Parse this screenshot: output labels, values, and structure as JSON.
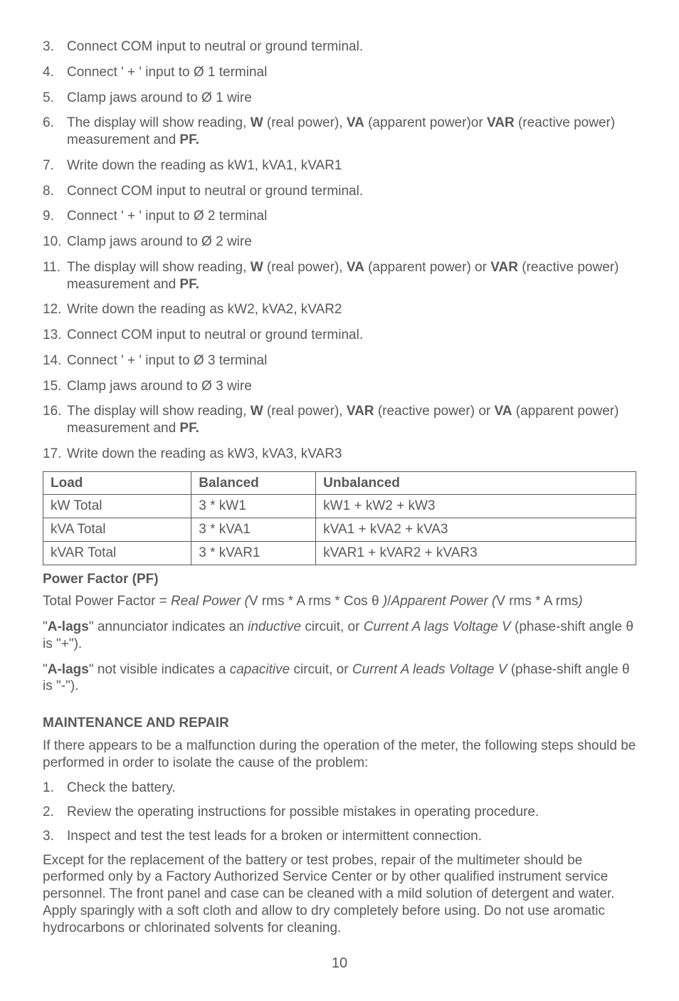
{
  "steps": [
    {
      "n": "3.",
      "t": "Connect COM input to neutral or ground terminal."
    },
    {
      "n": "4.",
      "t": "Connect ' + ' input to Ø 1 terminal"
    },
    {
      "n": "5.",
      "t": "Clamp jaws around to Ø 1 wire"
    },
    {
      "n": "6.",
      "pre": "The display will show reading, ",
      "b1": "W",
      "mid1": " (real power), ",
      "b2": "VA",
      "mid2": " (apparent power)or ",
      "b3": "VAR",
      "mid3": " (reactive power) measurement and ",
      "b4": "PF."
    },
    {
      "n": "7.",
      "t": "Write down the reading as kW1, kVA1, kVAR1"
    },
    {
      "n": "8.",
      "t": "Connect COM input to neutral or ground terminal."
    },
    {
      "n": "9.",
      "t": "Connect ' + ' input to Ø 2 terminal"
    },
    {
      "n": "10.",
      "t": "Clamp jaws around to Ø 2 wire"
    },
    {
      "n": "11.",
      "pre": "The display will show reading, ",
      "b1": "W",
      "mid1": " (real power), ",
      "b2": "VA",
      "mid2": " (apparent power) or ",
      "b3": "VAR",
      "mid3": " (reactive power) measurement and ",
      "b4": "PF."
    },
    {
      "n": "12.",
      "t": "Write down the reading as kW2, kVA2, kVAR2"
    },
    {
      "n": "13.",
      "t": "Connect COM input to neutral or ground terminal."
    },
    {
      "n": "14.",
      "t": "Connect ' + ' input to Ø 3 terminal"
    },
    {
      "n": "15.",
      "t": "Clamp jaws around to Ø 3 wire"
    },
    {
      "n": "16.",
      "pre": "The display will show reading, ",
      "b1": "W",
      "mid1": " (real power), ",
      "b2": "VAR",
      "mid2": " (reactive power) or ",
      "b3": "VA",
      "mid3": " (apparent power) measurement and ",
      "b4": "PF."
    },
    {
      "n": "17.",
      "t": "Write down the reading as kW3, kVA3, kVAR3"
    }
  ],
  "table": {
    "headers": [
      "Load",
      "Balanced",
      "Unbalanced"
    ],
    "rows": [
      [
        "kW Total",
        "3 * kW1",
        "kW1 + kW2 + kW3"
      ],
      [
        "kVA Total",
        "3 * kVA1",
        "kVA1 + kVA2 + kVA3"
      ],
      [
        "kVAR Total",
        "3 * kVAR1",
        "kVAR1 + kVAR2 + kVAR3"
      ]
    ],
    "col_widths": [
      "25%",
      "21%",
      "54%"
    ]
  },
  "pf": {
    "head": "Power Factor  (PF)",
    "formula_pre": "Total Power Factor = ",
    "formula_i1": "Real Power (",
    "formula_mid1": "V rms * A rms * Cos θ ",
    "formula_i2": ")",
    "formula_slash": "/",
    "formula_i3": "Apparent Power (",
    "formula_mid2": "V rms * A rms",
    "formula_i4": ")",
    "lags1_q1": "\"",
    "lags1_b": "A-lags",
    "lags1_q2": "\" annunciator indicates an ",
    "lags1_i1": "inductive",
    "lags1_mid": " circuit, or ",
    "lags1_i2": "Current A lags Voltage V",
    "lags1_end": " (phase-shift angle  θ  is \"+\").",
    "lags2_q1": "\"",
    "lags2_b": "A-lags",
    "lags2_q2": "\" not visible indicates a ",
    "lags2_i1": "capacitive",
    "lags2_mid": " circuit, or ",
    "lags2_i2": "Current A leads Voltage V",
    "lags2_end": " (phase-shift angle  θ  is \"-\")."
  },
  "maint": {
    "head": "MAINTENANCE AND REPAIR",
    "intro": "If there appears to be a malfunction during the operation of the meter, the following steps should be performed in order to isolate the cause of the problem:",
    "steps": [
      {
        "n": "1.",
        "t": "Check the battery."
      },
      {
        "n": "2.",
        "t": "Review the operating instructions for possible mistakes in operating procedure."
      },
      {
        "n": "3.",
        "t": "Inspect and test the test leads for a broken or intermittent connection."
      }
    ],
    "tail": "Except for the replacement of the battery or test probes, repair of the multimeter should be performed only by a Factory Authorized Service Center or by other qualified instrument service personnel. The front panel and case can be cleaned with a mild solution of detergent and water. Apply sparingly with a soft cloth and allow to dry completely before using. Do not use aromatic hydrocarbons or chlorinated solvents for cleaning."
  },
  "pagenum": "10"
}
